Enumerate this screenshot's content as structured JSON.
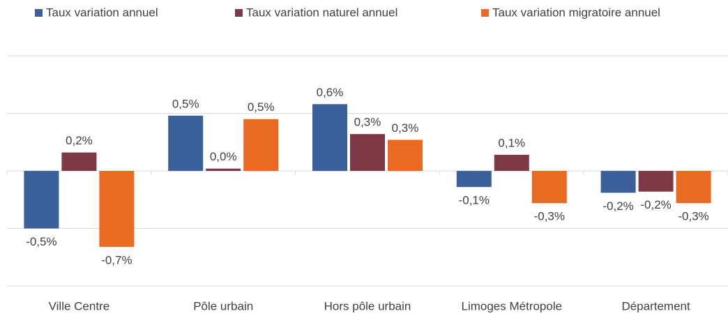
{
  "chart_data": {
    "type": "bar",
    "categories": [
      "Ville Centre",
      "Pôle urbain",
      "Hors pôle urbain",
      "Limoges Métropole",
      "Département"
    ],
    "series": [
      {
        "name": "Taux variation annuel",
        "color": "#3a619c",
        "values": [
          -0.5,
          0.48,
          0.58,
          -0.14,
          -0.19
        ],
        "value_labels": [
          "-0,5%",
          "0,5%",
          "0,6%",
          "-0,1%",
          "-0,2%"
        ]
      },
      {
        "name": "Taux variation naturel annuel",
        "color": "#7e3947",
        "values": [
          0.16,
          0.02,
          0.32,
          0.14,
          -0.18
        ],
        "value_labels": [
          "0,2%",
          "0,0%",
          "0,3%",
          "0,1%",
          "-0,2%"
        ]
      },
      {
        "name": "Taux variation migratoire annuel",
        "color": "#ea6a21",
        "values": [
          -0.66,
          0.45,
          0.27,
          -0.28,
          -0.28
        ],
        "value_labels": [
          "-0,7%",
          "0,5%",
          "0,3%",
          "-0,3%",
          "-0,3%"
        ]
      }
    ],
    "ylim": [
      -1.0,
      1.0
    ],
    "yticks": [
      -1.0,
      -0.5,
      0,
      0.5,
      1.0
    ],
    "grid": true,
    "legend": "top"
  }
}
